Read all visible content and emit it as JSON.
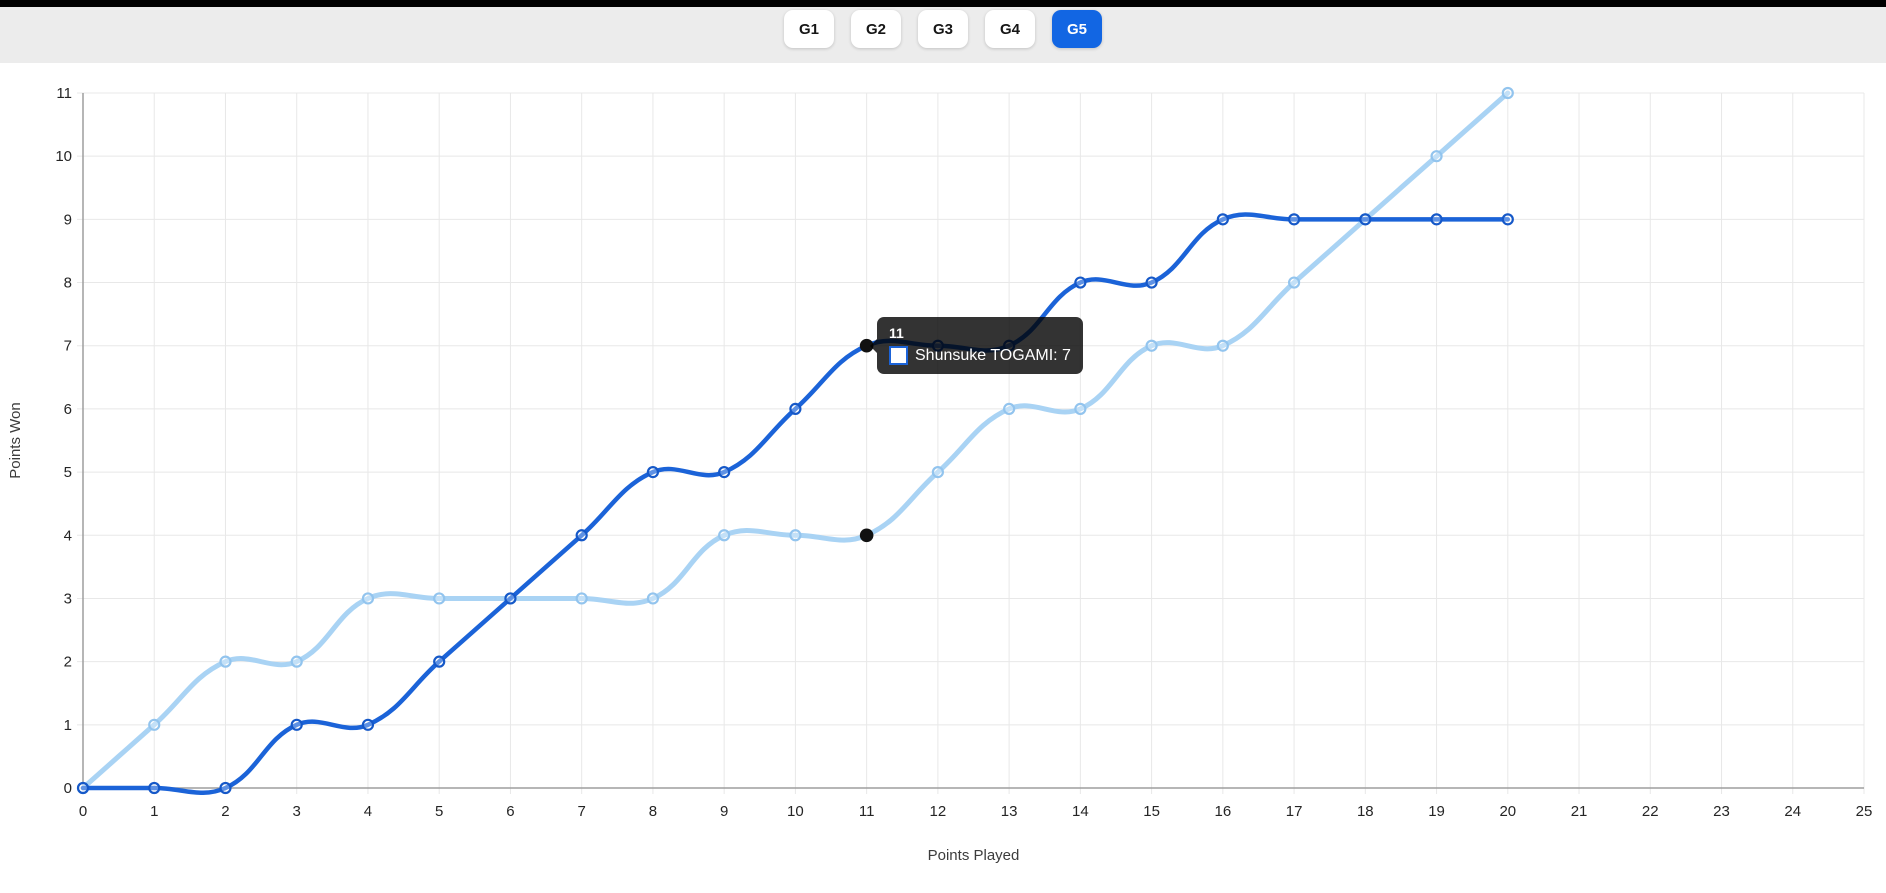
{
  "topbar": {
    "tabs": [
      {
        "label": "G1",
        "active": false
      },
      {
        "label": "G2",
        "active": false
      },
      {
        "label": "G3",
        "active": false
      },
      {
        "label": "G4",
        "active": false
      },
      {
        "label": "G5",
        "active": true
      }
    ],
    "active_color": "#1266e3"
  },
  "chart_data": {
    "type": "line",
    "title": "",
    "xlabel": "Points Played",
    "ylabel": "Points Won",
    "xlim": [
      0,
      25
    ],
    "ylim": [
      0,
      11
    ],
    "xticks": [
      0,
      1,
      2,
      3,
      4,
      5,
      6,
      7,
      8,
      9,
      10,
      11,
      12,
      13,
      14,
      15,
      16,
      17,
      18,
      19,
      20,
      21,
      22,
      23,
      24,
      25
    ],
    "yticks": [
      0,
      1,
      2,
      3,
      4,
      5,
      6,
      7,
      8,
      9,
      10,
      11
    ],
    "grid": true,
    "legend": "none",
    "x": [
      0,
      1,
      2,
      3,
      4,
      5,
      6,
      7,
      8,
      9,
      10,
      11,
      12,
      13,
      14,
      15,
      16,
      17,
      18,
      19,
      20
    ],
    "series": [
      {
        "name": "Shunsuke TOGAMI",
        "color": "#1b63d8",
        "point_stroke": "#1558c8",
        "line_width": 4.5,
        "values": [
          0,
          0,
          0,
          1,
          1,
          2,
          3,
          4,
          5,
          5,
          6,
          7,
          7,
          7,
          8,
          8,
          9,
          9,
          9,
          9,
          9
        ]
      },
      {
        "name": "",
        "color": "#a9d3f4",
        "point_stroke": "#92c4ee",
        "line_width": 5,
        "values": [
          0,
          1,
          2,
          2,
          3,
          3,
          3,
          3,
          3,
          4,
          4,
          4,
          5,
          6,
          6,
          7,
          7,
          8,
          9,
          10,
          11
        ]
      }
    ],
    "highlight_points": [
      {
        "x": 11,
        "y": 7
      },
      {
        "x": 11,
        "y": 4
      }
    ],
    "colors": {
      "grid": "#e8e8e8",
      "axis_border": "#9e9e9e",
      "tick_label": "#252525",
      "axis_title": "#3c3c3c",
      "highlight_dot": "#111111"
    }
  },
  "tooltip": {
    "title": "11",
    "body": "Shunsuke TOGAMI: 7"
  }
}
